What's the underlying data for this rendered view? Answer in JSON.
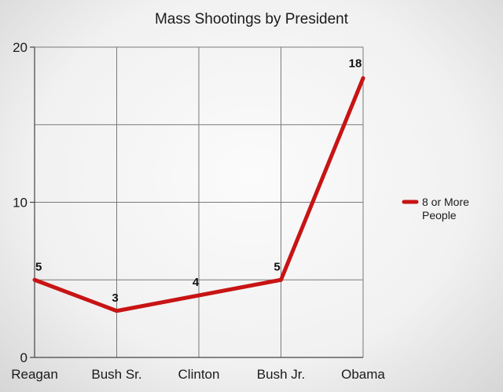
{
  "chart_data": {
    "type": "line",
    "title": "Mass Shootings by President",
    "categories": [
      "Reagan",
      "Bush Sr.",
      "Clinton",
      "Bush Jr.",
      "Obama"
    ],
    "series": [
      {
        "name": "8 or More People",
        "legend_lines": [
          "8 or More",
          "People"
        ],
        "values": [
          5,
          3,
          4,
          5,
          18
        ],
        "color": "#c81414"
      }
    ],
    "ylim": [
      0,
      20
    ],
    "yticks": [
      0,
      10,
      20
    ],
    "grid": true,
    "legend_position": "right",
    "data_labels": true
  }
}
